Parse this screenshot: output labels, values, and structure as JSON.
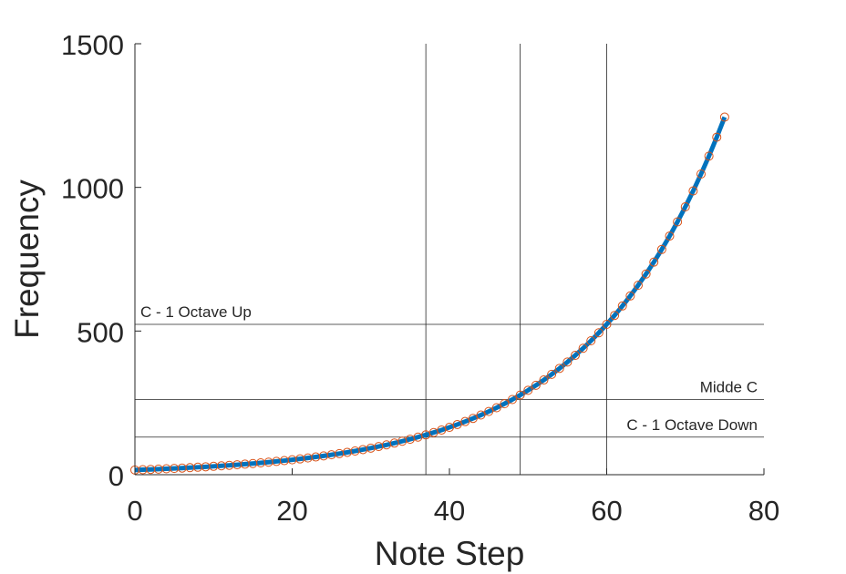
{
  "chart_data": {
    "type": "line",
    "title": "",
    "xlabel": "Note Step",
    "ylabel": "Frequency",
    "xlim": [
      0,
      80
    ],
    "ylim": [
      0,
      1500
    ],
    "xticks": [
      0,
      20,
      40,
      60,
      80
    ],
    "yticks": [
      0,
      500,
      1000,
      1500
    ],
    "xtick_labels": [
      "0",
      "20",
      "40",
      "60",
      "80"
    ],
    "ytick_labels": [
      "0",
      "500",
      "1000",
      "1500"
    ],
    "grid": false,
    "legend": "none",
    "series": [
      {
        "style": "line",
        "color": "#0072BD",
        "x": [
          0,
          1,
          2,
          3,
          4,
          5,
          6,
          7,
          8,
          9,
          10,
          11,
          12,
          13,
          14,
          15,
          16,
          17,
          18,
          19,
          20,
          21,
          22,
          23,
          24,
          25,
          26,
          27,
          28,
          29,
          30,
          31,
          32,
          33,
          34,
          35,
          36,
          37,
          38,
          39,
          40,
          41,
          42,
          43,
          44,
          45,
          46,
          47,
          48,
          49,
          50,
          51,
          52,
          53,
          54,
          55,
          56,
          57,
          58,
          59,
          60,
          61,
          62,
          63,
          64,
          65,
          66,
          67,
          68,
          69,
          70,
          71,
          72,
          73,
          74,
          75
        ],
        "values": [
          16.35,
          17.32,
          18.35,
          19.45,
          20.6,
          21.83,
          23.12,
          24.5,
          25.96,
          27.5,
          29.14,
          30.87,
          32.7,
          34.65,
          36.71,
          38.89,
          41.2,
          43.65,
          46.25,
          49,
          51.91,
          55,
          58.27,
          61.74,
          65.41,
          69.3,
          73.42,
          77.78,
          82.41,
          87.31,
          92.5,
          98,
          103.83,
          110,
          116.54,
          123.47,
          130.81,
          138.59,
          146.83,
          155.56,
          164.81,
          174.61,
          185,
          196,
          207.65,
          220,
          233.08,
          246.94,
          261.63,
          277.18,
          293.66,
          311.13,
          329.63,
          349.23,
          369.99,
          392,
          415.3,
          440,
          466.16,
          493.88,
          523.25,
          554.37,
          587.33,
          622.25,
          659.26,
          698.46,
          739.99,
          783.99,
          830.61,
          880,
          932.33,
          987.77,
          1046.5,
          1108.73,
          1174.66,
          1244.51
        ]
      },
      {
        "style": "markers",
        "marker": "circle",
        "color": "#D95319",
        "x": [
          0,
          1,
          2,
          3,
          4,
          5,
          6,
          7,
          8,
          9,
          10,
          11,
          12,
          13,
          14,
          15,
          16,
          17,
          18,
          19,
          20,
          21,
          22,
          23,
          24,
          25,
          26,
          27,
          28,
          29,
          30,
          31,
          32,
          33,
          34,
          35,
          36,
          37,
          38,
          39,
          40,
          41,
          42,
          43,
          44,
          45,
          46,
          47,
          48,
          49,
          50,
          51,
          52,
          53,
          54,
          55,
          56,
          57,
          58,
          59,
          60,
          61,
          62,
          63,
          64,
          65,
          66,
          67,
          68,
          69,
          70,
          71,
          72,
          73,
          74,
          75
        ],
        "values": [
          16.35,
          17.32,
          18.35,
          19.45,
          20.6,
          21.83,
          23.12,
          24.5,
          25.96,
          27.5,
          29.14,
          30.87,
          32.7,
          34.65,
          36.71,
          38.89,
          41.2,
          43.65,
          46.25,
          49,
          51.91,
          55,
          58.27,
          61.74,
          65.41,
          69.3,
          73.42,
          77.78,
          82.41,
          87.31,
          92.5,
          98,
          103.83,
          110,
          116.54,
          123.47,
          130.81,
          138.59,
          146.83,
          155.56,
          164.81,
          174.61,
          185,
          196,
          207.65,
          220,
          233.08,
          246.94,
          261.63,
          277.18,
          293.66,
          311.13,
          329.63,
          349.23,
          369.99,
          392,
          415.3,
          440,
          466.16,
          493.88,
          523.25,
          554.37,
          587.33,
          622.25,
          659.26,
          698.46,
          739.99,
          783.99,
          830.61,
          880,
          932.33,
          987.77,
          1046.5,
          1108.73,
          1174.66,
          1244.51
        ]
      }
    ],
    "reference_lines": {
      "horizontal": [
        {
          "y": 523.25,
          "label": "C - 1 Octave Up",
          "label_side": "left"
        },
        {
          "y": 261.63,
          "label": "Midde C",
          "label_side": "right"
        },
        {
          "y": 130.81,
          "label": "C - 1 Octave Down",
          "label_side": "right"
        }
      ],
      "vertical": [
        {
          "x": 37
        },
        {
          "x": 49
        },
        {
          "x": 60
        }
      ]
    }
  }
}
